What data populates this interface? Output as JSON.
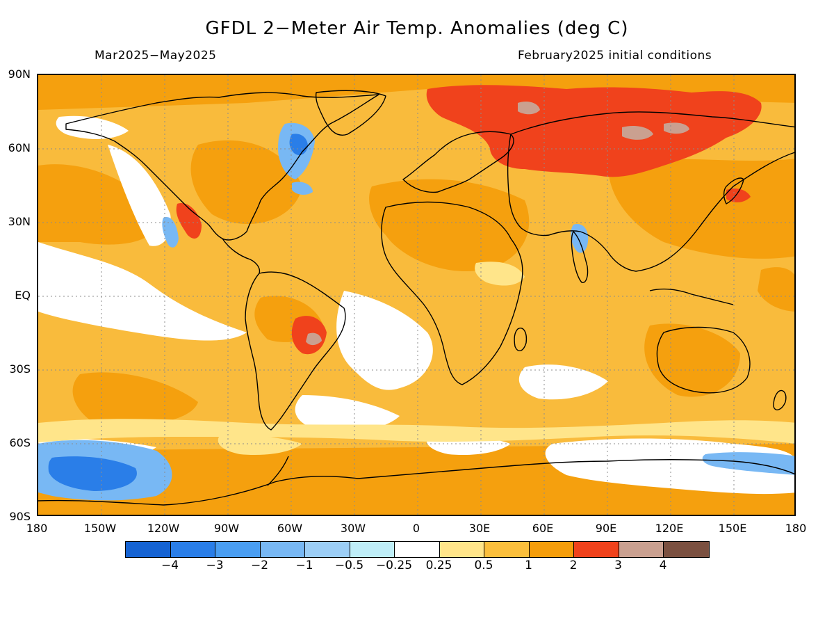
{
  "title": "GFDL 2−Meter Air Temp. Anomalies (deg C)",
  "subtitle_left": "Mar2025−May2025",
  "subtitle_right": "February2025 initial conditions",
  "lat_labels": [
    "90N",
    "60N",
    "30N",
    "EQ",
    "30S",
    "60S",
    "90S"
  ],
  "lon_labels": [
    "180",
    "150W",
    "120W",
    "90W",
    "60W",
    "30W",
    "0",
    "30E",
    "60E",
    "90E",
    "120E",
    "150E",
    "180"
  ],
  "colorbar": {
    "colors": [
      "#1563d3",
      "#2a7ee8",
      "#4a9ef2",
      "#78b8f4",
      "#9ccef6",
      "#bfeef8",
      "#ffffff",
      "#ffe58a",
      "#fbbf3c",
      "#f59d0a",
      "#f0421c",
      "#caa090",
      "#7b5040"
    ],
    "labels": [
      "−4",
      "−3",
      "−2",
      "−1",
      "−0.5",
      "−0.25",
      "0.25",
      "0.5",
      "1",
      "2",
      "3",
      "4"
    ]
  }
}
